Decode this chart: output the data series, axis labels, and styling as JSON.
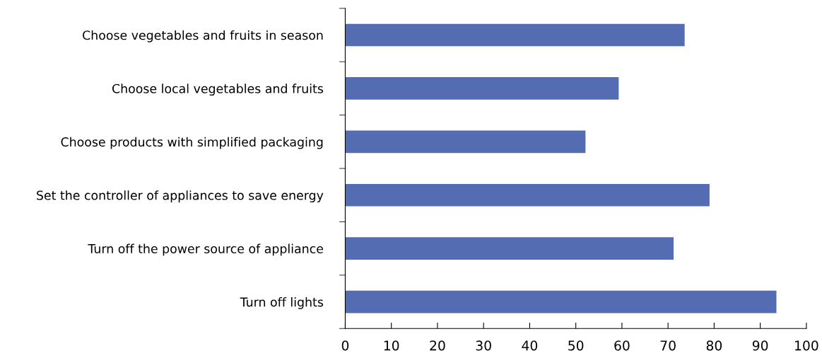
{
  "chart_data": {
    "type": "bar",
    "orientation": "horizontal",
    "categories": [
      "Choose vegetables and fruits in season",
      "Choose local vegetables and fruits",
      "Choose products with simplified packaging",
      "Set the controller of appliances to save energy",
      "Turn off the power source of appliance",
      "Turn off lights"
    ],
    "values": [
      73.6,
      59.3,
      52.1,
      79.0,
      71.2,
      93.5
    ],
    "color": "#546cb1",
    "xlim": [
      0,
      100
    ],
    "xticks": [
      0,
      10,
      20,
      30,
      40,
      50,
      60,
      70,
      80,
      90,
      100
    ],
    "grid": false,
    "legend": false
  }
}
